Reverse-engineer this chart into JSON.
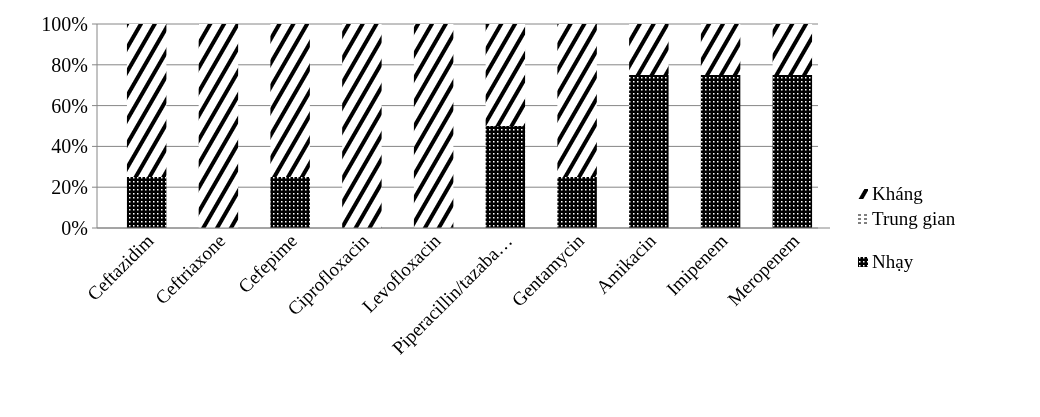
{
  "chart_data": {
    "type": "bar",
    "stacked": true,
    "categories": [
      "Ceftazidim",
      "Ceftriaxone",
      "Cefepime",
      "Ciprofloxacin",
      "Levofloxacin",
      "Piperacillin/tazaba…",
      "Gentamycin",
      "Amikacin",
      "Imipenem",
      "Meropenem"
    ],
    "series": [
      {
        "name": "Nhạy",
        "color": "#000000",
        "values": [
          25,
          0,
          25,
          0,
          0,
          50,
          25,
          75,
          75,
          75
        ]
      },
      {
        "name": "Trung gian",
        "color": "#000000",
        "values": [
          0,
          0,
          0,
          0,
          0,
          0,
          0,
          0,
          0,
          0
        ]
      },
      {
        "name": "Kháng",
        "color": "#000000",
        "values": [
          75,
          100,
          75,
          100,
          100,
          50,
          75,
          25,
          25,
          25
        ]
      }
    ],
    "ylim": [
      0,
      100
    ],
    "yticks": [
      {
        "value": 0,
        "label": "0%"
      },
      {
        "value": 20,
        "label": "20%"
      },
      {
        "value": 40,
        "label": "40%"
      },
      {
        "value": 60,
        "label": "60%"
      },
      {
        "value": 80,
        "label": "80%"
      },
      {
        "value": 100,
        "label": "100%"
      }
    ],
    "grid": "y",
    "legend": "right"
  }
}
